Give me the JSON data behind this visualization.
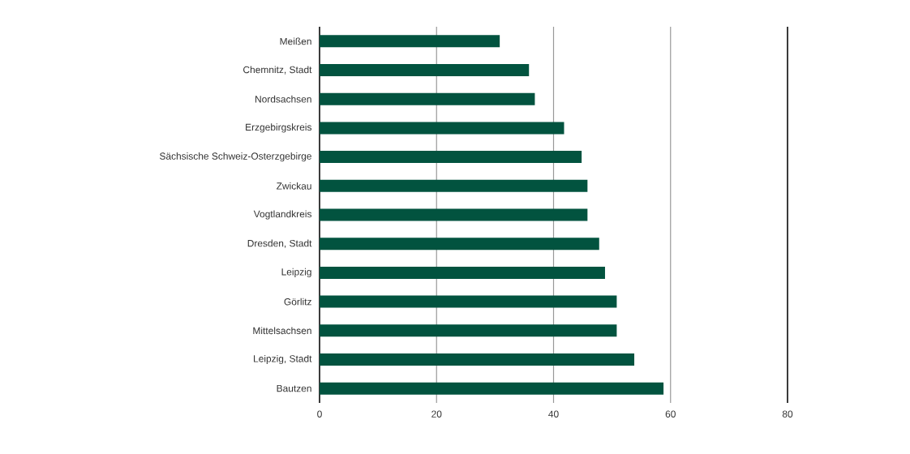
{
  "chart_data": {
    "type": "bar",
    "orientation": "horizontal",
    "categories": [
      "Meißen",
      "Chemnitz, Stadt",
      "Nordsachsen",
      "Erzgebirgskreis",
      "Sächsische Schweiz-Osterzgebirge",
      "Zwickau",
      "Vogtlandkreis",
      "Dresden, Stadt",
      "Leipzig",
      "Görlitz",
      "Mittelsachsen",
      "Leipzig, Stadt",
      "Bautzen"
    ],
    "values": [
      30.8,
      35.8,
      36.8,
      41.8,
      44.8,
      45.8,
      45.8,
      47.8,
      48.8,
      50.8,
      50.8,
      53.8,
      58.8
    ],
    "color": "#02533f",
    "xlim": [
      0,
      80
    ],
    "xticks": [
      0,
      20,
      40,
      60,
      80
    ],
    "grid": "x"
  }
}
